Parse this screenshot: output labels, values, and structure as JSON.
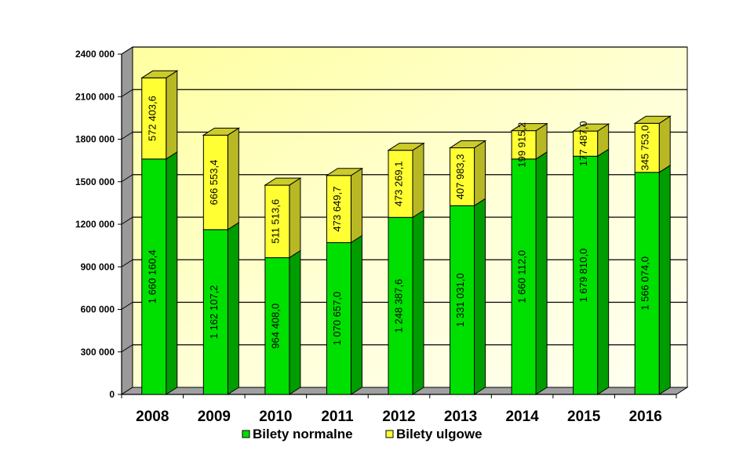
{
  "chart_data": {
    "type": "bar",
    "stacked": true,
    "three_d": true,
    "categories": [
      "2008",
      "2009",
      "2010",
      "2011",
      "2012",
      "2013",
      "2014",
      "2015",
      "2016"
    ],
    "series": [
      {
        "name": "Bilety normalne",
        "color": "#00e000",
        "values": [
          1660160.4,
          1162107.2,
          964408.0,
          1070657.0,
          1248387.6,
          1331031.0,
          1660112.0,
          1679810.0,
          1566074.0
        ],
        "labels": [
          "1 660 160,4",
          "1 162 107,2",
          "964 408,0",
          "1 070 657,0",
          "1 248 387,6",
          "1 331 031,0",
          "1 660 112,0",
          "1 679 810,0",
          "1 566 074,0"
        ]
      },
      {
        "name": "Bilety ulgowe",
        "color": "#ffff33",
        "values": [
          572403.6,
          666553.4,
          511513.6,
          473649.7,
          473269.1,
          407983.3,
          199915.2,
          177487.0,
          345753.0
        ],
        "labels": [
          "572 403,6",
          "666 553,4",
          "511 513,6",
          "473 649,7",
          "473 269,1",
          "407 983,3",
          "199 915,2",
          "177 487,0",
          "345 753,0"
        ]
      }
    ],
    "y_ticks": [
      0,
      300000,
      600000,
      900000,
      1200000,
      1500000,
      1800000,
      2100000,
      2400000
    ],
    "y_tick_labels": [
      "0",
      "300 000",
      "600 000",
      "900 000",
      "1200 000",
      "1500 000",
      "1800 000",
      "2100 000",
      "2400 000"
    ],
    "ylim": [
      0,
      2400000
    ],
    "grid": true,
    "legend_position": "bottom",
    "title": "",
    "xlabel": "",
    "ylabel": "",
    "colors": {
      "plot_background": "#ffffc0",
      "side_wall": "#9a9a9a",
      "floor": "#a0a0a0"
    }
  }
}
